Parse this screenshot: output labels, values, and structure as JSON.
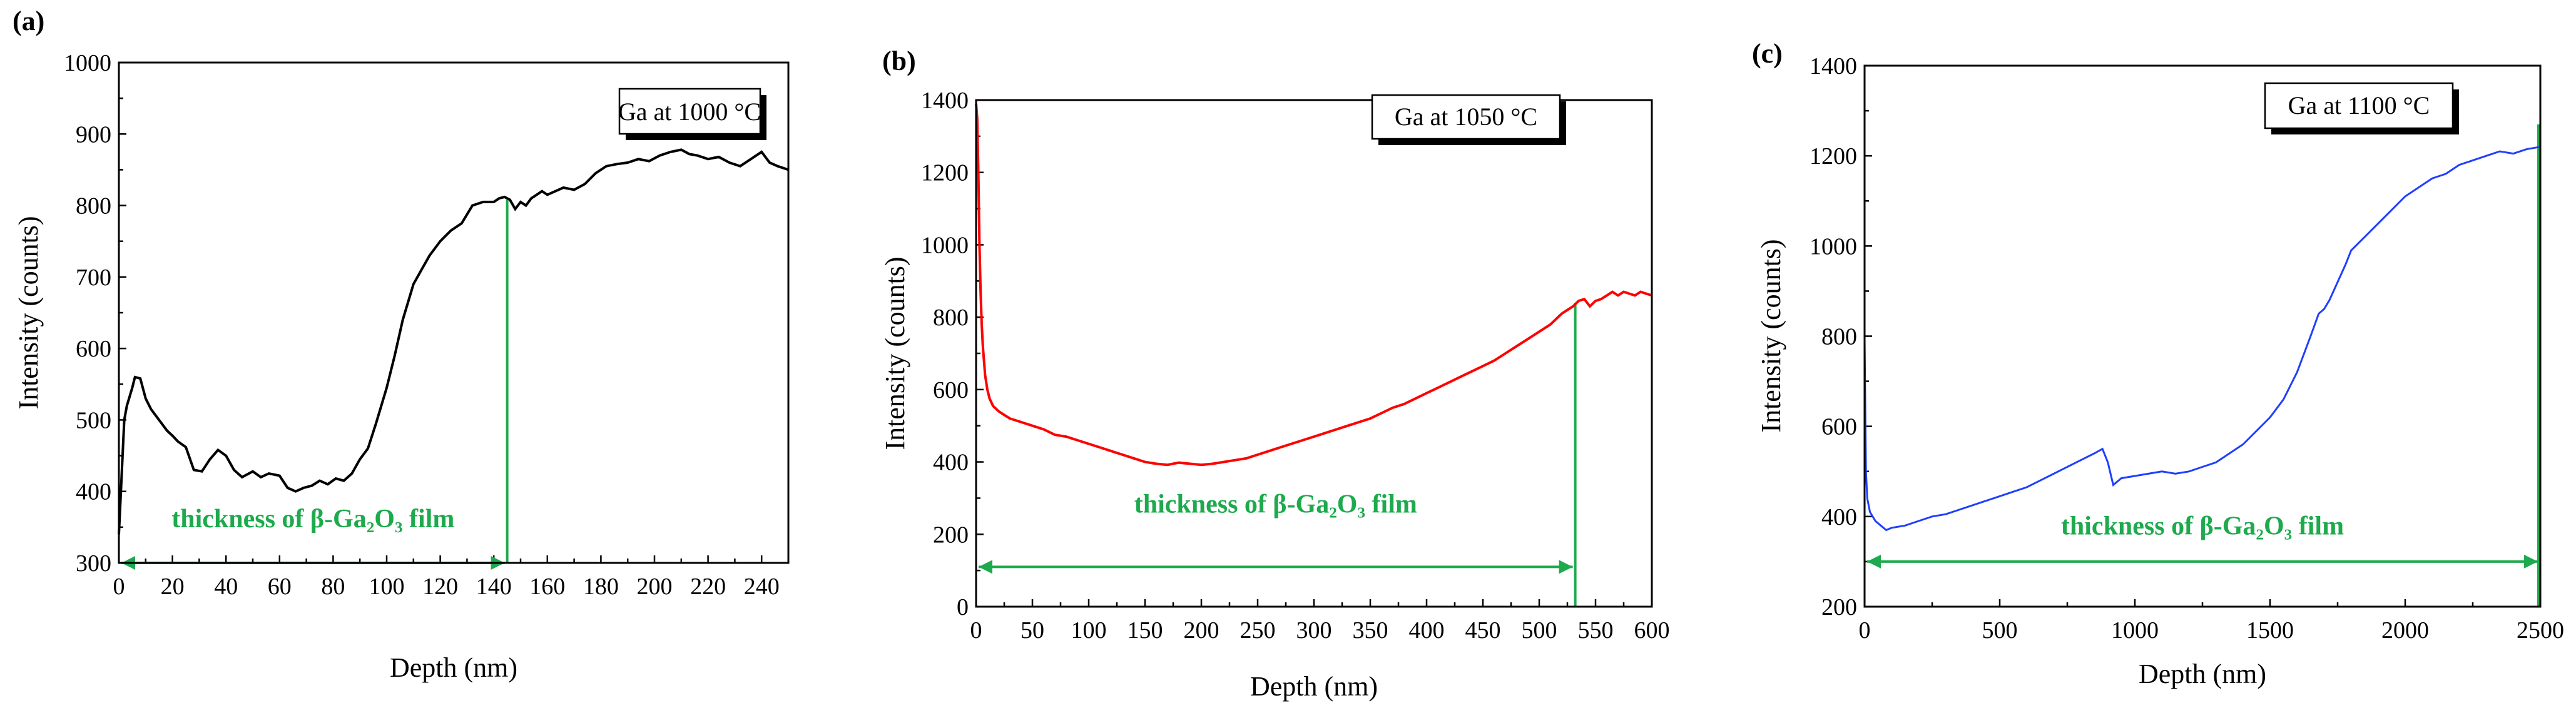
{
  "chart_data": [
    {
      "type": "line",
      "panel_label": "(a)",
      "legend": "Ga at 1000 °C",
      "xlabel": "Depth  (nm)",
      "ylabel": "Intensity  (counts)",
      "xlim": [
        0,
        250
      ],
      "ylim": [
        300,
        1000
      ],
      "xticks": [
        0,
        20,
        40,
        60,
        80,
        100,
        120,
        140,
        160,
        180,
        200,
        220,
        240
      ],
      "yticks": [
        300,
        400,
        500,
        600,
        700,
        800,
        900,
        1000
      ],
      "line_color": "#000000",
      "annotation": {
        "text": "thickness of  β-Ga₂O₃  film",
        "x_start": 0,
        "x_end": 145,
        "y_arrow": 300,
        "y_label": 350,
        "vline_x": 145,
        "vline_top": 808
      },
      "series": [
        {
          "name": "Ga at 1000 °C",
          "x": [
            0,
            1,
            2,
            3,
            5,
            6,
            8,
            10,
            12,
            15,
            18,
            20,
            22,
            25,
            28,
            31,
            34,
            37,
            40,
            43,
            46,
            50,
            53,
            56,
            60,
            63,
            66,
            69,
            72,
            75,
            78,
            81,
            84,
            87,
            90,
            93,
            96,
            100,
            103,
            106,
            110,
            113,
            116,
            120,
            124,
            128,
            132,
            136,
            140,
            142,
            144,
            146,
            148,
            150,
            152,
            154,
            156,
            158,
            160,
            163,
            166,
            170,
            174,
            178,
            182,
            186,
            190,
            194,
            198,
            202,
            206,
            210,
            213,
            216,
            220,
            224,
            228,
            232,
            236,
            240,
            243,
            246,
            250
          ],
          "y": [
            340,
            420,
            500,
            520,
            545,
            560,
            558,
            530,
            515,
            500,
            485,
            478,
            470,
            462,
            430,
            428,
            445,
            458,
            450,
            430,
            420,
            428,
            420,
            425,
            422,
            405,
            400,
            405,
            408,
            415,
            410,
            418,
            415,
            425,
            445,
            460,
            495,
            545,
            590,
            640,
            690,
            710,
            730,
            750,
            765,
            775,
            800,
            805,
            805,
            810,
            812,
            808,
            795,
            805,
            800,
            810,
            815,
            820,
            815,
            820,
            825,
            822,
            830,
            845,
            855,
            858,
            860,
            865,
            862,
            870,
            875,
            878,
            872,
            870,
            865,
            868,
            860,
            855,
            865,
            875,
            860,
            855,
            850
          ]
        }
      ]
    },
    {
      "type": "line",
      "panel_label": "(b)",
      "legend": "Ga at 1050 °C",
      "xlabel": "Depth  (nm)",
      "ylabel": "Intensity  (counts)",
      "xlim": [
        0,
        600
      ],
      "ylim": [
        0,
        1400
      ],
      "xticks": [
        0,
        50,
        100,
        150,
        200,
        250,
        300,
        350,
        400,
        450,
        500,
        550,
        600
      ],
      "yticks": [
        0,
        200,
        400,
        600,
        800,
        1000,
        1200,
        1400
      ],
      "line_color": "#ff0000",
      "annotation": {
        "text": "thickness of   β-Ga₂O₃   film",
        "x_start": 0,
        "x_end": 532,
        "y_arrow": 110,
        "y_label": 260,
        "vline_x": 532,
        "vline_top": 840
      },
      "series": [
        {
          "name": "Ga at 1050 °C",
          "x": [
            0,
            1,
            2,
            3,
            4,
            5,
            6,
            7,
            8,
            10,
            12,
            15,
            20,
            25,
            30,
            40,
            50,
            60,
            70,
            80,
            90,
            100,
            110,
            120,
            130,
            140,
            150,
            160,
            170,
            180,
            190,
            200,
            210,
            220,
            230,
            240,
            250,
            260,
            270,
            280,
            290,
            300,
            310,
            320,
            330,
            340,
            350,
            360,
            370,
            380,
            390,
            400,
            410,
            420,
            430,
            440,
            450,
            460,
            470,
            480,
            490,
            500,
            510,
            520,
            530,
            535,
            540,
            545,
            550,
            555,
            560,
            565,
            570,
            575,
            580,
            585,
            590,
            595,
            600
          ],
          "y": [
            1390,
            1350,
            1200,
            1000,
            870,
            780,
            720,
            680,
            640,
            600,
            575,
            555,
            540,
            530,
            520,
            510,
            500,
            490,
            475,
            470,
            460,
            450,
            440,
            430,
            420,
            410,
            400,
            395,
            392,
            398,
            395,
            392,
            395,
            400,
            405,
            410,
            420,
            430,
            440,
            450,
            460,
            470,
            480,
            490,
            500,
            510,
            520,
            535,
            550,
            560,
            575,
            590,
            605,
            620,
            635,
            650,
            665,
            680,
            700,
            720,
            740,
            760,
            780,
            810,
            830,
            845,
            850,
            830,
            845,
            850,
            860,
            870,
            860,
            870,
            865,
            860,
            870,
            865,
            860
          ]
        }
      ]
    },
    {
      "type": "line",
      "panel_label": "(c)",
      "legend": "Ga at 1100 °C",
      "xlabel": "Depth  (nm)",
      "ylabel": "Intensity  (counts)",
      "xlim": [
        0,
        2500
      ],
      "ylim": [
        200,
        1400
      ],
      "xticks": [
        0,
        500,
        1000,
        1500,
        2000,
        2500
      ],
      "yticks": [
        200,
        400,
        600,
        800,
        1000,
        1200,
        1400
      ],
      "line_color": "#1f3fff",
      "annotation": {
        "text": "thickness of   β-Ga₂O₃   film",
        "x_start": 0,
        "x_end": 2500,
        "y_arrow": 300,
        "y_label": 360,
        "vline_x": 2500,
        "vline_top": 1270
      },
      "series": [
        {
          "name": "Ga at 1100 °C",
          "x": [
            0,
            5,
            10,
            20,
            40,
            60,
            80,
            100,
            150,
            200,
            250,
            300,
            350,
            400,
            450,
            500,
            550,
            600,
            650,
            700,
            750,
            800,
            850,
            880,
            900,
            920,
            950,
            1000,
            1050,
            1100,
            1150,
            1200,
            1250,
            1300,
            1350,
            1400,
            1450,
            1500,
            1550,
            1600,
            1650,
            1680,
            1700,
            1720,
            1750,
            1780,
            1800,
            1850,
            1900,
            1950,
            2000,
            2050,
            2100,
            2150,
            2200,
            2250,
            2300,
            2350,
            2400,
            2450,
            2500
          ],
          "y": [
            790,
            500,
            440,
            410,
            390,
            380,
            370,
            375,
            380,
            390,
            400,
            405,
            415,
            425,
            435,
            445,
            455,
            465,
            480,
            495,
            510,
            525,
            540,
            550,
            520,
            470,
            485,
            490,
            495,
            500,
            495,
            500,
            510,
            520,
            540,
            560,
            590,
            620,
            660,
            720,
            800,
            850,
            860,
            880,
            920,
            960,
            990,
            1020,
            1050,
            1080,
            1110,
            1130,
            1150,
            1160,
            1180,
            1190,
            1200,
            1210,
            1205,
            1215,
            1220
          ]
        }
      ]
    }
  ]
}
